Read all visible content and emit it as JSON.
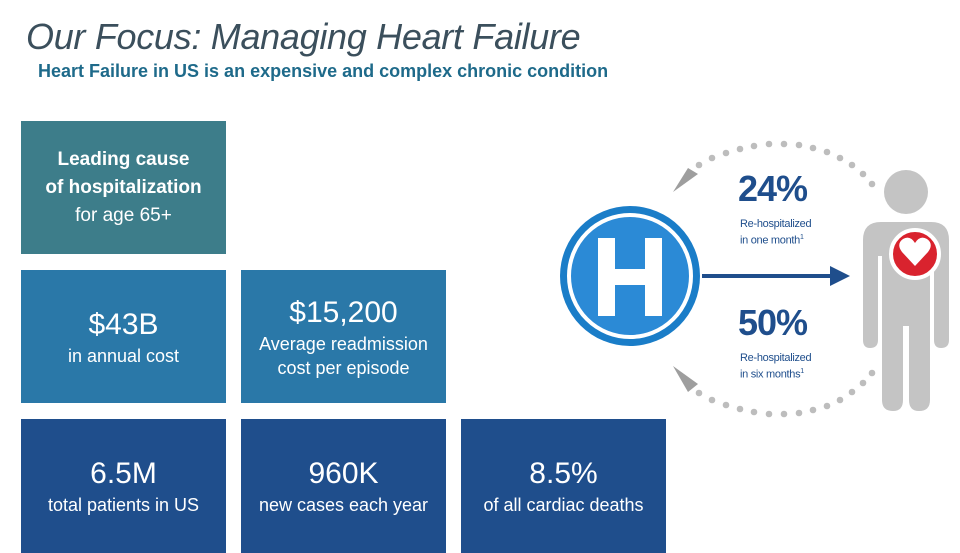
{
  "title": "Our Focus: Managing Heart Failure",
  "subtitle": "Heart Failure in US is an expensive and complex chronic condition",
  "tiles": {
    "hospitalization": {
      "line1": "Leading cause",
      "line2": "of hospitalization",
      "line3": "for age 65+"
    },
    "annual_cost": {
      "value": "$43B",
      "label": "in annual cost"
    },
    "readmission": {
      "value": "$15,200",
      "label_line1": "Average readmission",
      "label_line2": "cost per episode"
    },
    "patients": {
      "value": "6.5M",
      "label": "total patients in US"
    },
    "new_cases": {
      "value": "960K",
      "label": "new cases each year"
    },
    "cardiac_deaths": {
      "value": "8.5%",
      "label": "of all cardiac deaths"
    }
  },
  "rehospitalization": {
    "hospital_letter": "H",
    "one_month": {
      "value": "24%",
      "label_line1": "Re-hospitalized",
      "label_line2": "in one month",
      "footnote": "1"
    },
    "six_months": {
      "value": "50%",
      "label_line1": "Re-hospitalized",
      "label_line2": "in six months",
      "footnote": "1"
    }
  },
  "icons": [
    "hospital-icon",
    "person-icon",
    "heart-icon",
    "arrow-right-icon",
    "circular-arrow-icon"
  ],
  "colors": {
    "title": "#3b4f5c",
    "subtitle": "#1e6a8a",
    "tile_teal": "#3d7d8a",
    "tile_mid": "#2a78a8",
    "tile_navy": "#1f4e8c",
    "hospital_blue": "#1a7dc8",
    "heart_red": "#d9232e",
    "person_gray": "#c4c4c4"
  }
}
